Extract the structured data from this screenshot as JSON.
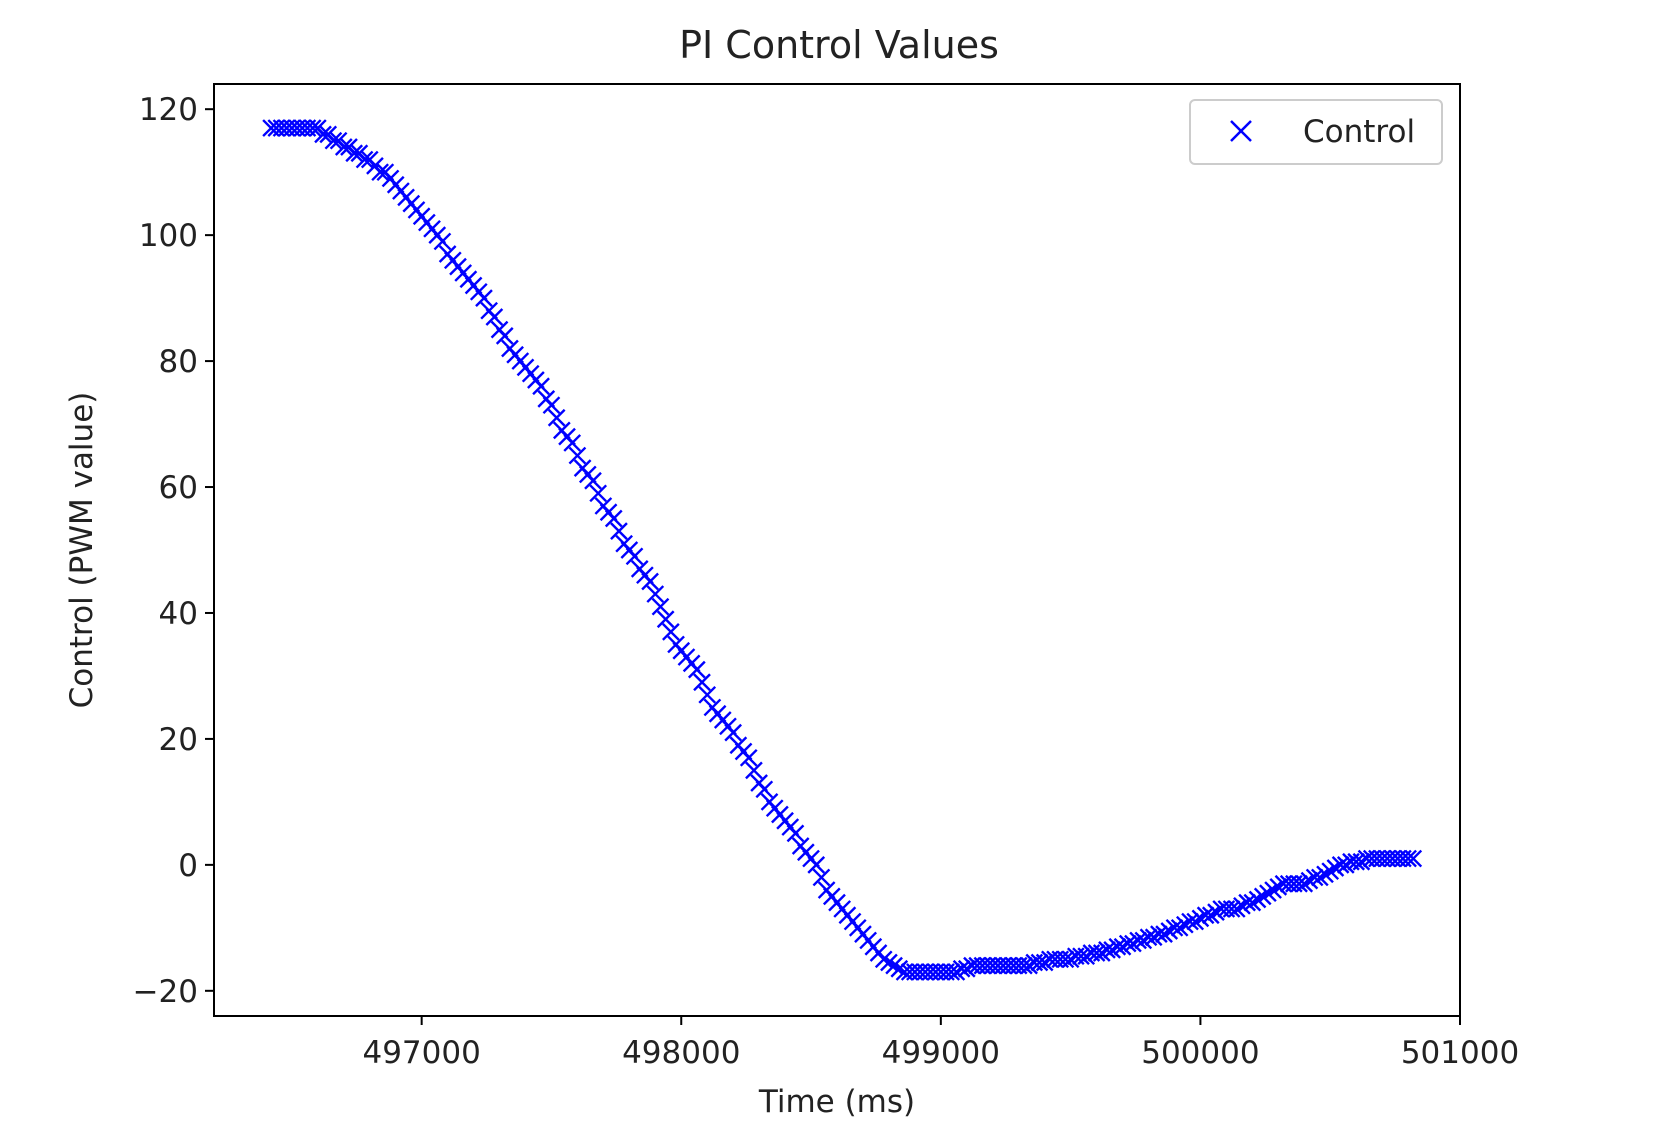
{
  "chart_data": {
    "type": "scatter",
    "title": "PI Control Values",
    "xlabel": "Time (ms)",
    "ylabel": "Control (PWM value)",
    "xlim": [
      496200,
      501000
    ],
    "ylim": [
      -24,
      124
    ],
    "xticks": [
      497000,
      498000,
      499000,
      500000,
      501000
    ],
    "yticks": [
      -20,
      0,
      20,
      40,
      60,
      80,
      100,
      120
    ],
    "ytick_labels": [
      "−20",
      "0",
      "20",
      "40",
      "60",
      "80",
      "100",
      "120"
    ],
    "grid": false,
    "legend_position": "top-right",
    "marker": "x",
    "series": [
      {
        "name": "Control",
        "color": "#0000ff",
        "points": [
          [
            496420,
            117
          ],
          [
            496440,
            117
          ],
          [
            496460,
            117
          ],
          [
            496480,
            117
          ],
          [
            496500,
            117
          ],
          [
            496520,
            117
          ],
          [
            496540,
            117
          ],
          [
            496560,
            117
          ],
          [
            496580,
            117
          ],
          [
            496600,
            117
          ],
          [
            496620,
            116
          ],
          [
            496640,
            116
          ],
          [
            496660,
            115
          ],
          [
            496680,
            115
          ],
          [
            496700,
            114
          ],
          [
            496720,
            114
          ],
          [
            496740,
            113
          ],
          [
            496760,
            113
          ],
          [
            496780,
            112
          ],
          [
            496800,
            112
          ],
          [
            496820,
            111
          ],
          [
            496840,
            110
          ],
          [
            496860,
            110
          ],
          [
            496880,
            109
          ],
          [
            496900,
            108
          ],
          [
            496920,
            107
          ],
          [
            496940,
            106
          ],
          [
            496960,
            105
          ],
          [
            496980,
            104
          ],
          [
            497000,
            103
          ],
          [
            497020,
            102
          ],
          [
            497040,
            101
          ],
          [
            497060,
            100
          ],
          [
            497080,
            99
          ],
          [
            497100,
            97
          ],
          [
            497120,
            96
          ],
          [
            497140,
            95
          ],
          [
            497160,
            94
          ],
          [
            497180,
            93
          ],
          [
            497200,
            92
          ],
          [
            497220,
            91
          ],
          [
            497240,
            90
          ],
          [
            497260,
            88
          ],
          [
            497280,
            87
          ],
          [
            497300,
            85
          ],
          [
            497320,
            84
          ],
          [
            497340,
            82
          ],
          [
            497360,
            81
          ],
          [
            497380,
            80
          ],
          [
            497400,
            79
          ],
          [
            497420,
            78
          ],
          [
            497440,
            77
          ],
          [
            497460,
            76
          ],
          [
            497480,
            74
          ],
          [
            497500,
            73
          ],
          [
            497520,
            71
          ],
          [
            497540,
            69
          ],
          [
            497560,
            68
          ],
          [
            497580,
            67
          ],
          [
            497600,
            65
          ],
          [
            497620,
            63
          ],
          [
            497640,
            62
          ],
          [
            497660,
            61
          ],
          [
            497680,
            59
          ],
          [
            497700,
            57
          ],
          [
            497720,
            56
          ],
          [
            497740,
            55
          ],
          [
            497760,
            53
          ],
          [
            497780,
            51
          ],
          [
            497800,
            50
          ],
          [
            497820,
            49
          ],
          [
            497840,
            47
          ],
          [
            497860,
            46
          ],
          [
            497880,
            45
          ],
          [
            497900,
            43
          ],
          [
            497920,
            41
          ],
          [
            497940,
            39
          ],
          [
            497960,
            37
          ],
          [
            497980,
            35
          ],
          [
            498000,
            34
          ],
          [
            498020,
            33
          ],
          [
            498040,
            32
          ],
          [
            498060,
            31
          ],
          [
            498080,
            29
          ],
          [
            498100,
            27
          ],
          [
            498120,
            25
          ],
          [
            498140,
            24
          ],
          [
            498160,
            23
          ],
          [
            498180,
            22
          ],
          [
            498200,
            21
          ],
          [
            498220,
            19
          ],
          [
            498240,
            18
          ],
          [
            498260,
            17
          ],
          [
            498280,
            15
          ],
          [
            498300,
            13
          ],
          [
            498320,
            12
          ],
          [
            498340,
            10
          ],
          [
            498360,
            9
          ],
          [
            498380,
            8
          ],
          [
            498400,
            7
          ],
          [
            498420,
            6
          ],
          [
            498440,
            5
          ],
          [
            498460,
            3
          ],
          [
            498480,
            2
          ],
          [
            498500,
            1
          ],
          [
            498520,
            0
          ],
          [
            498540,
            -2
          ],
          [
            498560,
            -4
          ],
          [
            498580,
            -5
          ],
          [
            498600,
            -6
          ],
          [
            498620,
            -7
          ],
          [
            498640,
            -8
          ],
          [
            498660,
            -9
          ],
          [
            498680,
            -10
          ],
          [
            498700,
            -11
          ],
          [
            498720,
            -12
          ],
          [
            498740,
            -13
          ],
          [
            498760,
            -14
          ],
          [
            498780,
            -15
          ],
          [
            498800,
            -15.5
          ],
          [
            498820,
            -16
          ],
          [
            498840,
            -16.5
          ],
          [
            498860,
            -17
          ],
          [
            498880,
            -17
          ],
          [
            498900,
            -17
          ],
          [
            498920,
            -17
          ],
          [
            498940,
            -17
          ],
          [
            498960,
            -17
          ],
          [
            498980,
            -17
          ],
          [
            499000,
            -17
          ],
          [
            499020,
            -17
          ],
          [
            499040,
            -17
          ],
          [
            499060,
            -17
          ],
          [
            499080,
            -16.5
          ],
          [
            499100,
            -16.5
          ],
          [
            499120,
            -16
          ],
          [
            499140,
            -16
          ],
          [
            499160,
            -16
          ],
          [
            499180,
            -16
          ],
          [
            499200,
            -16
          ],
          [
            499220,
            -16
          ],
          [
            499240,
            -16
          ],
          [
            499260,
            -16
          ],
          [
            499280,
            -16
          ],
          [
            499300,
            -16
          ],
          [
            499320,
            -16
          ],
          [
            499340,
            -16
          ],
          [
            499360,
            -15.5
          ],
          [
            499380,
            -15.5
          ],
          [
            499400,
            -15.5
          ],
          [
            499420,
            -15
          ],
          [
            499440,
            -15
          ],
          [
            499460,
            -15
          ],
          [
            499480,
            -15
          ],
          [
            499500,
            -15
          ],
          [
            499520,
            -14.5
          ],
          [
            499540,
            -14.5
          ],
          [
            499560,
            -14.5
          ],
          [
            499580,
            -14
          ],
          [
            499600,
            -14
          ],
          [
            499620,
            -14
          ],
          [
            499640,
            -13.5
          ],
          [
            499660,
            -13.5
          ],
          [
            499680,
            -13
          ],
          [
            499700,
            -13
          ],
          [
            499720,
            -12.5
          ],
          [
            499740,
            -12.5
          ],
          [
            499760,
            -12
          ],
          [
            499780,
            -12
          ],
          [
            499800,
            -11.5
          ],
          [
            499820,
            -11.5
          ],
          [
            499840,
            -11
          ],
          [
            499860,
            -11
          ],
          [
            499880,
            -10.5
          ],
          [
            499900,
            -10
          ],
          [
            499920,
            -10
          ],
          [
            499940,
            -9.5
          ],
          [
            499960,
            -9
          ],
          [
            499980,
            -9
          ],
          [
            500000,
            -8.5
          ],
          [
            500020,
            -8
          ],
          [
            500040,
            -8
          ],
          [
            500060,
            -7.5
          ],
          [
            500080,
            -7
          ],
          [
            500100,
            -7
          ],
          [
            500120,
            -7
          ],
          [
            500140,
            -7
          ],
          [
            500160,
            -6.5
          ],
          [
            500180,
            -6
          ],
          [
            500200,
            -6
          ],
          [
            500220,
            -5.5
          ],
          [
            500240,
            -5
          ],
          [
            500260,
            -4.5
          ],
          [
            500280,
            -4
          ],
          [
            500300,
            -3.5
          ],
          [
            500320,
            -3
          ],
          [
            500340,
            -3
          ],
          [
            500360,
            -3
          ],
          [
            500380,
            -3
          ],
          [
            500400,
            -3
          ],
          [
            500420,
            -2.5
          ],
          [
            500440,
            -2
          ],
          [
            500460,
            -2
          ],
          [
            500480,
            -1.5
          ],
          [
            500500,
            -1
          ],
          [
            500520,
            -0.5
          ],
          [
            500540,
            0
          ],
          [
            500560,
            0
          ],
          [
            500580,
            0.5
          ],
          [
            500600,
            0.5
          ],
          [
            500620,
            0.5
          ],
          [
            500640,
            1
          ],
          [
            500660,
            1
          ],
          [
            500680,
            1
          ],
          [
            500700,
            1
          ],
          [
            500720,
            1
          ],
          [
            500740,
            1
          ],
          [
            500760,
            1
          ],
          [
            500780,
            1
          ],
          [
            500800,
            1
          ],
          [
            500820,
            1
          ]
        ]
      }
    ]
  }
}
